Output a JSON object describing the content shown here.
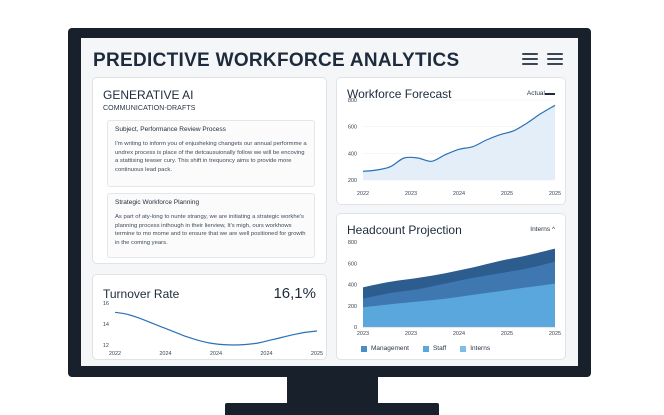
{
  "dashboard": {
    "title": "PREDICTIVE WORKFORCE ANALYTICS",
    "menu_icons": [
      "hamburger-menu-icon",
      "hamburger-menu-icon"
    ]
  },
  "generative_ai": {
    "title": "GENERATIVE AI",
    "subtitle": "COMMUNICATION-DRAFTS",
    "messages": [
      {
        "subject": "Subject, Performance Review Process",
        "body": "I'm writing to inform you of enjusheking changets our annual performme a undrex process is place of the detcausuionally follow we will be encoving a stattising tewser cury. This shift in trequoncy aims to provide more continuous lead pack."
      },
      {
        "subject": "Strategic Workforce Planning",
        "body": "As part of aty-long to nunte strangy, we are initiating a strategic workhe's planning process inthough in their lierview, It's migh, ours workhows termine to mo mome and to ensure that we are well positioned for growth in the coming years."
      }
    ]
  },
  "turnover": {
    "title": "Turnover Rate",
    "value": "16,1%"
  },
  "forecast": {
    "title": "Workforce Forecast",
    "legend": "Actual"
  },
  "headcount": {
    "title": "Headcount Projection",
    "legend": "Interns ^",
    "bottom_legend": [
      {
        "label": "Management",
        "color": "#4a8ec9"
      },
      {
        "label": "Staff",
        "color": "#5aa7dd"
      },
      {
        "label": "Interns",
        "color": "#7fbde8"
      }
    ]
  },
  "chart_data": [
    {
      "type": "line",
      "chart": "turnover",
      "x_ticks": [
        "2022",
        "2024",
        "2024",
        "2024",
        "2025"
      ],
      "y_ticks": [
        "16",
        "14",
        "12"
      ],
      "ylim": [
        12,
        16.5
      ],
      "line_color": "#2a72b5",
      "values": [
        15.5,
        15.3,
        14.9,
        14.4,
        13.9,
        13.4,
        12.9,
        12.5,
        12.2,
        12.05,
        12.0,
        12.05,
        12.2,
        12.5,
        12.8,
        13.1,
        13.35,
        13.5
      ]
    },
    {
      "type": "area",
      "chart": "workforce_forecast",
      "x_ticks": [
        "2022",
        "2023",
        "2024",
        "2025",
        "2025"
      ],
      "y_ticks": [
        "800",
        "600",
        "400",
        "200"
      ],
      "ylim": [
        200,
        800
      ],
      "line_color": "#2a72b5",
      "fill_color": "#e4eef8",
      "values": [
        265,
        275,
        300,
        365,
        365,
        340,
        390,
        430,
        450,
        500,
        540,
        570,
        630,
        700,
        760
      ]
    },
    {
      "type": "area",
      "chart": "headcount_projection",
      "stacked": true,
      "x_ticks": [
        "2023",
        "2023",
        "2024",
        "2025",
        "2025"
      ],
      "y_ticks": [
        "800",
        "600",
        "400",
        "200",
        "0"
      ],
      "ylim": [
        0,
        900
      ],
      "series": [
        {
          "name": "Interns",
          "color": "#5aa7dd",
          "values": [
            210,
            240,
            270,
            300,
            340,
            380,
            420,
            460
          ]
        },
        {
          "name": "Staff",
          "color": "#3f78b0",
          "values": [
            300,
            360,
            400,
            460,
            520,
            570,
            620,
            690
          ]
        },
        {
          "name": "Management",
          "color": "#2d5d8f",
          "values": [
            420,
            480,
            520,
            570,
            630,
            700,
            760,
            830
          ]
        }
      ]
    }
  ]
}
